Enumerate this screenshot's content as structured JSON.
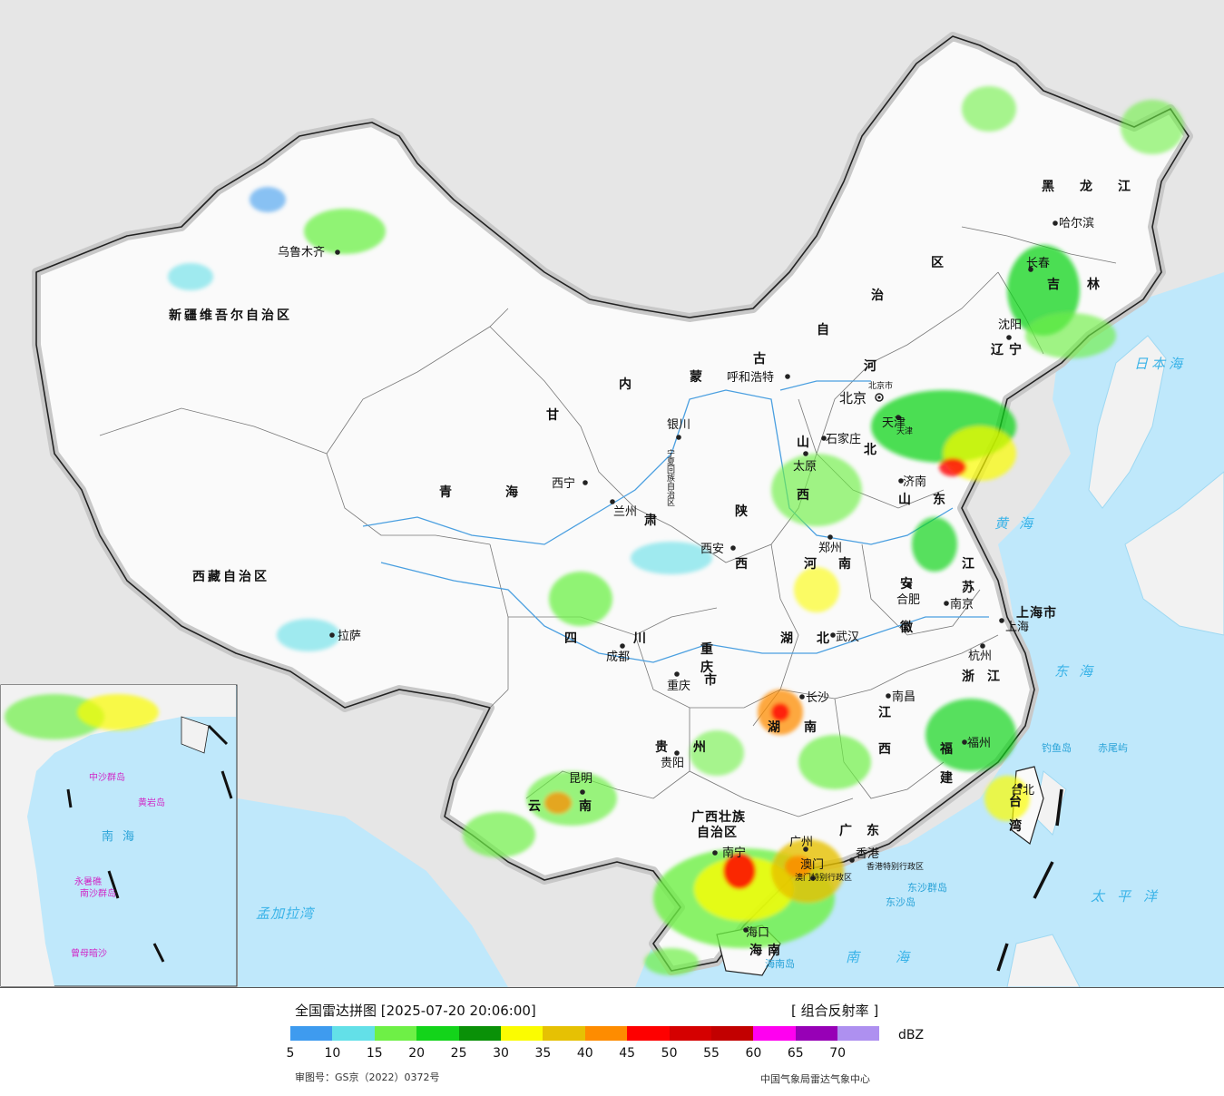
{
  "title": "全国雷达拼图 [2025-07-20 20:06:00]",
  "product": "[ 组合反射率 ]",
  "unit": "dBZ",
  "review_number": "审图号：GS京（2022）0372号",
  "source": "中国气象局雷达气象中心",
  "legend": {
    "colors": [
      "#3e9bef",
      "#63e0e8",
      "#6ef046",
      "#13d41a",
      "#0a9108",
      "#fbfc01",
      "#e6c103",
      "#fe8c00",
      "#fe0000",
      "#d50000",
      "#c20000",
      "#ff00f0",
      "#9700b6",
      "#ae90f0"
    ],
    "ticks": [
      "5",
      "10",
      "15",
      "20",
      "25",
      "30",
      "35",
      "40",
      "45",
      "50",
      "55",
      "60",
      "65",
      "70"
    ]
  },
  "regions": {
    "xinjiang": "新疆维吾尔自治区",
    "xizang": "西藏自治区",
    "qinghai_1": "青",
    "qinghai_2": "海",
    "gansu_1": "甘",
    "gansu_2": "肃",
    "neimenggu_1": "内",
    "neimenggu_2": "蒙",
    "neimenggu_3": "古",
    "neimenggu_4": "自",
    "neimenggu_5": "治",
    "neimenggu_6": "区",
    "heilongjiang_1": "黑",
    "heilongjiang_2": "龙",
    "heilongjiang_3": "江",
    "jilin_1": "吉",
    "jilin_2": "林",
    "liaoning_1": "辽",
    "liaoning_2": "宁",
    "hebei_1": "河",
    "hebei_2": "北",
    "shanxi_1": "山",
    "shanxi_2": "西",
    "shaanxi_1": "陕",
    "shaanxi_2": "西",
    "ningxia": "宁夏回族自治区",
    "shandong_1": "山",
    "shandong_2": "东",
    "henan_1": "河",
    "henan_2": "南",
    "jiangsu_1": "江",
    "jiangsu_2": "苏",
    "anhui_1": "安",
    "anhui_2": "徽",
    "shanghai": "上海市",
    "zhejiang_1": "浙",
    "zhejiang_2": "江",
    "hubei_1": "湖",
    "hubei_2": "北",
    "hunan_1": "湖",
    "hunan_2": "南",
    "jiangxi_1": "江",
    "jiangxi_2": "西",
    "fujian_1": "福",
    "fujian_2": "建",
    "taiwan_1": "台",
    "taiwan_2": "湾",
    "guangdong_1": "广",
    "guangdong_2": "东",
    "guangxi_1": "广西壮族",
    "guangxi_2": "自治区",
    "hainan_1": "海",
    "hainan_2": "南",
    "sichuan_1": "四",
    "sichuan_2": "川",
    "chongqing_1": "重",
    "chongqing_2": "庆",
    "chongqing_3": "市",
    "guizhou_1": "贵",
    "guizhou_2": "州",
    "yunnan_1": "云",
    "yunnan_2": "南",
    "tianjin": "天津",
    "beijing_small": "北京市",
    "hk": "香港特别行政区",
    "macau": "澳门特别行政区"
  },
  "cities": {
    "wulumuqi": "乌鲁木齐",
    "lasa": "拉萨",
    "xining": "西宁",
    "lanzhou": "兰州",
    "yinchuan": "银川",
    "huhehaote": "呼和浩特",
    "beijing": "北京",
    "tianjin": "天津",
    "shijiazhuang": "石家庄",
    "taiyuan": "太原",
    "jinan": "济南",
    "zhengzhou": "郑州",
    "xian": "西安",
    "chengdu": "成都",
    "chongqing": "重庆",
    "wuhan": "武汉",
    "hefei": "合肥",
    "nanjing": "南京",
    "shanghai": "上海",
    "hangzhou": "杭州",
    "changsha": "长沙",
    "nanchang": "南昌",
    "fuzhou": "福州",
    "taibei": "台北",
    "guiyang": "贵阳",
    "kunming": "昆明",
    "nanning": "南宁",
    "guangzhou": "广州",
    "xianggang": "香港",
    "aomen": "澳门",
    "haikou": "海口",
    "haerbin": "哈尔滨",
    "changchun": "长春",
    "shenyang": "沈阳"
  },
  "seas_islands": {
    "ribenhai": "日本海",
    "huanghai": "黄海",
    "donghai": "东海",
    "nanhai": "南海",
    "taipingyang": "太平洋",
    "mengjialawan": "孟加拉湾",
    "diaoyudao": "钓鱼岛",
    "chiweiyu": "赤尾屿",
    "dongshaqundao": "东沙群岛",
    "dongshadao": "东沙岛",
    "hainandao": "海南岛",
    "inset_nanhai": "南海",
    "inset_zhongsha": "中沙群岛",
    "inset_huangyan": "黄岩岛",
    "inset_nansha": "南沙群岛",
    "inset_yongshu": "永暑礁",
    "inset_zengmu": "曾母暗沙"
  }
}
